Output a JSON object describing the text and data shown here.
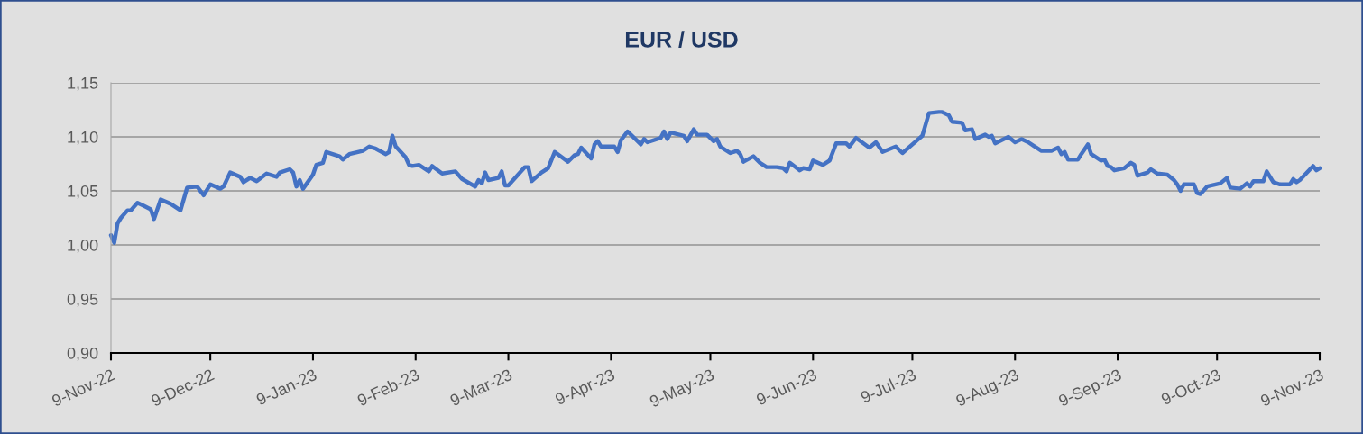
{
  "chart_data": {
    "type": "line",
    "title": "EUR / USD",
    "x": [
      "2022-11-09",
      "2022-11-10",
      "2022-11-11",
      "2022-11-12",
      "2022-11-14",
      "2022-11-15",
      "2022-11-17",
      "2022-11-19",
      "2022-11-21",
      "2022-11-22",
      "2022-11-24",
      "2022-11-27",
      "2022-11-30",
      "2022-12-02",
      "2022-12-05",
      "2022-12-07",
      "2022-12-09",
      "2022-12-12",
      "2022-12-13",
      "2022-12-15",
      "2022-12-18",
      "2022-12-19",
      "2022-12-21",
      "2022-12-23",
      "2022-12-26",
      "2022-12-29",
      "2022-12-30",
      "2023-01-02",
      "2023-01-03",
      "2023-01-04",
      "2023-01-05",
      "2023-01-06",
      "2023-01-09",
      "2023-01-10",
      "2023-01-12",
      "2023-01-13",
      "2023-01-17",
      "2023-01-18",
      "2023-01-20",
      "2023-01-24",
      "2023-01-26",
      "2023-01-28",
      "2023-01-31",
      "2023-02-01",
      "2023-02-02",
      "2023-02-03",
      "2023-02-06",
      "2023-02-07",
      "2023-02-08",
      "2023-02-10",
      "2023-02-13",
      "2023-02-14",
      "2023-02-17",
      "2023-02-21",
      "2023-02-23",
      "2023-02-27",
      "2023-02-28",
      "2023-03-01",
      "2023-03-02",
      "2023-03-03",
      "2023-03-06",
      "2023-03-07",
      "2023-03-08",
      "2023-03-09",
      "2023-03-14",
      "2023-03-15",
      "2023-03-16",
      "2023-03-19",
      "2023-03-21",
      "2023-03-23",
      "2023-03-27",
      "2023-03-29",
      "2023-03-30",
      "2023-03-31",
      "2023-04-03",
      "2023-04-04",
      "2023-04-05",
      "2023-04-06",
      "2023-04-10",
      "2023-04-11",
      "2023-04-12",
      "2023-04-14",
      "2023-04-16",
      "2023-04-18",
      "2023-04-19",
      "2023-04-20",
      "2023-04-24",
      "2023-04-25",
      "2023-04-26",
      "2023-04-27",
      "2023-05-01",
      "2023-05-02",
      "2023-05-04",
      "2023-05-05",
      "2023-05-08",
      "2023-05-10",
      "2023-05-11",
      "2023-05-12",
      "2023-05-15",
      "2023-05-17",
      "2023-05-18",
      "2023-05-19",
      "2023-05-22",
      "2023-05-24",
      "2023-05-26",
      "2023-05-29",
      "2023-05-31",
      "2023-06-01",
      "2023-06-02",
      "2023-06-05",
      "2023-06-06",
      "2023-06-08",
      "2023-06-09",
      "2023-06-12",
      "2023-06-14",
      "2023-06-16",
      "2023-06-19",
      "2023-06-20",
      "2023-06-22",
      "2023-06-26",
      "2023-06-28",
      "2023-06-30",
      "2023-07-04",
      "2023-07-06",
      "2023-07-09",
      "2023-07-12",
      "2023-07-14",
      "2023-07-17",
      "2023-07-18",
      "2023-07-20",
      "2023-07-21",
      "2023-07-24",
      "2023-07-25",
      "2023-07-27",
      "2023-07-28",
      "2023-07-31",
      "2023-08-01",
      "2023-08-02",
      "2023-08-03",
      "2023-08-07",
      "2023-08-09",
      "2023-08-11",
      "2023-08-13",
      "2023-08-15",
      "2023-08-17",
      "2023-08-20",
      "2023-08-22",
      "2023-08-23",
      "2023-08-24",
      "2023-08-25",
      "2023-08-28",
      "2023-08-29",
      "2023-08-31",
      "2023-09-01",
      "2023-09-04",
      "2023-09-05",
      "2023-09-06",
      "2023-09-07",
      "2023-09-08",
      "2023-09-11",
      "2023-09-13",
      "2023-09-14",
      "2023-09-15",
      "2023-09-18",
      "2023-09-19",
      "2023-09-21",
      "2023-09-24",
      "2023-09-26",
      "2023-09-27",
      "2023-09-28",
      "2023-09-29",
      "2023-10-02",
      "2023-10-03",
      "2023-10-04",
      "2023-10-06",
      "2023-10-10",
      "2023-10-12",
      "2023-10-13",
      "2023-10-16",
      "2023-10-18",
      "2023-10-19",
      "2023-10-20",
      "2023-10-23",
      "2023-10-24",
      "2023-10-26",
      "2023-10-28",
      "2023-10-31",
      "2023-11-01",
      "2023-11-02",
      "2023-11-03",
      "2023-11-07",
      "2023-11-08",
      "2023-11-09"
    ],
    "series": [
      {
        "color": "#4472c4",
        "values": [
          1.009,
          1.002,
          1.02,
          1.025,
          1.032,
          1.032,
          1.039,
          1.036,
          1.033,
          1.024,
          1.042,
          1.038,
          1.032,
          1.053,
          1.054,
          1.046,
          1.056,
          1.052,
          1.054,
          1.067,
          1.063,
          1.058,
          1.062,
          1.059,
          1.066,
          1.063,
          1.067,
          1.07,
          1.067,
          1.054,
          1.06,
          1.052,
          1.065,
          1.074,
          1.076,
          1.086,
          1.082,
          1.079,
          1.084,
          1.087,
          1.091,
          1.089,
          1.084,
          1.086,
          1.101,
          1.091,
          1.081,
          1.074,
          1.073,
          1.074,
          1.068,
          1.073,
          1.066,
          1.068,
          1.061,
          1.054,
          1.06,
          1.057,
          1.067,
          1.06,
          1.062,
          1.068,
          1.055,
          1.055,
          1.072,
          1.072,
          1.059,
          1.067,
          1.071,
          1.086,
          1.077,
          1.083,
          1.084,
          1.09,
          1.08,
          1.093,
          1.096,
          1.091,
          1.091,
          1.086,
          1.097,
          1.105,
          1.099,
          1.093,
          1.098,
          1.095,
          1.099,
          1.105,
          1.098,
          1.104,
          1.101,
          1.096,
          1.107,
          1.102,
          1.102,
          1.096,
          1.098,
          1.091,
          1.085,
          1.087,
          1.084,
          1.077,
          1.082,
          1.076,
          1.072,
          1.072,
          1.071,
          1.068,
          1.076,
          1.069,
          1.071,
          1.07,
          1.078,
          1.074,
          1.078,
          1.094,
          1.094,
          1.091,
          1.099,
          1.09,
          1.095,
          1.086,
          1.091,
          1.085,
          1.093,
          1.101,
          1.122,
          1.123,
          1.123,
          1.12,
          1.114,
          1.113,
          1.106,
          1.107,
          1.098,
          1.102,
          1.1,
          1.101,
          1.094,
          1.1,
          1.095,
          1.098,
          1.095,
          1.091,
          1.087,
          1.087,
          1.09,
          1.084,
          1.086,
          1.079,
          1.079,
          1.084,
          1.093,
          1.084,
          1.078,
          1.079,
          1.073,
          1.072,
          1.069,
          1.071,
          1.076,
          1.074,
          1.064,
          1.067,
          1.07,
          1.066,
          1.065,
          1.06,
          1.056,
          1.05,
          1.056,
          1.056,
          1.048,
          1.047,
          1.054,
          1.057,
          1.062,
          1.053,
          1.052,
          1.057,
          1.054,
          1.059,
          1.059,
          1.068,
          1.058,
          1.056,
          1.056,
          1.061,
          1.058,
          1.06,
          1.073,
          1.069,
          1.071
        ]
      }
    ],
    "xlim": [
      "2022-11-09",
      "2023-11-09"
    ],
    "xticks": [
      {
        "value": "2022-11-09",
        "label": "9-Nov-22"
      },
      {
        "value": "2022-12-09",
        "label": "9-Dec-22"
      },
      {
        "value": "2023-01-09",
        "label": "9-Jan-23"
      },
      {
        "value": "2023-02-09",
        "label": "9-Feb-23"
      },
      {
        "value": "2023-03-09",
        "label": "9-Mar-23"
      },
      {
        "value": "2023-04-09",
        "label": "9-Apr-23"
      },
      {
        "value": "2023-05-09",
        "label": "9-May-23"
      },
      {
        "value": "2023-06-09",
        "label": "9-Jun-23"
      },
      {
        "value": "2023-07-09",
        "label": "9-Jul-23"
      },
      {
        "value": "2023-08-09",
        "label": "9-Aug-23"
      },
      {
        "value": "2023-09-09",
        "label": "9-Sep-23"
      },
      {
        "value": "2023-10-09",
        "label": "9-Oct-23"
      },
      {
        "value": "2023-11-09",
        "label": "9-Nov-23"
      }
    ],
    "ylim": [
      0.9,
      1.15
    ],
    "yticks": [
      {
        "value": 0.9,
        "label": "0,90"
      },
      {
        "value": 0.95,
        "label": "0,95"
      },
      {
        "value": 1.0,
        "label": "1,00"
      },
      {
        "value": 1.05,
        "label": "1,05"
      },
      {
        "value": 1.1,
        "label": "1,10"
      },
      {
        "value": 1.15,
        "label": "1,15"
      }
    ],
    "grid": "y",
    "marker": "none",
    "line_style": "solid"
  }
}
